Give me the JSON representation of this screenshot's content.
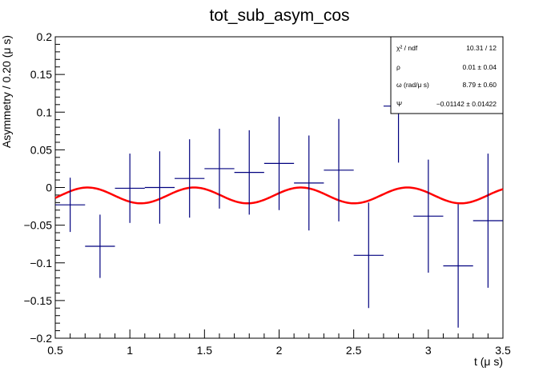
{
  "chart_data": {
    "type": "scatter",
    "title": "tot_sub_asym_cos",
    "xlabel": "t (μ s)",
    "ylabel": "Asymmetry / 0.20 (μ s)",
    "xlim": [
      0.5,
      3.5
    ],
    "ylim": [
      -0.2,
      0.2
    ],
    "x_ticks": [
      "0.5",
      "1",
      "1.5",
      "2",
      "2.5",
      "3",
      "3.5"
    ],
    "y_ticks": [
      "−0.2",
      "−0.15",
      "−0.1",
      "−0.05",
      "0",
      "0.05",
      "0.1",
      "0.15",
      "0.2"
    ],
    "grid": false,
    "series": [
      {
        "type": "errorbar",
        "color": "#00007f",
        "points": [
          {
            "x": 0.6,
            "y": -0.023,
            "yerr": 0.036
          },
          {
            "x": 0.8,
            "y": -0.078,
            "yerr": 0.042
          },
          {
            "x": 1.0,
            "y": -0.001,
            "yerr": 0.046
          },
          {
            "x": 1.2,
            "y": 0.0,
            "yerr": 0.048
          },
          {
            "x": 1.4,
            "y": 0.012,
            "yerr": 0.052
          },
          {
            "x": 1.6,
            "y": 0.025,
            "yerr": 0.053
          },
          {
            "x": 1.8,
            "y": 0.02,
            "yerr": 0.056
          },
          {
            "x": 2.0,
            "y": 0.032,
            "yerr": 0.062
          },
          {
            "x": 2.2,
            "y": 0.006,
            "yerr": 0.063
          },
          {
            "x": 2.4,
            "y": 0.023,
            "yerr": 0.068
          },
          {
            "x": 2.6,
            "y": -0.09,
            "yerr": 0.07
          },
          {
            "x": 2.8,
            "y": 0.108,
            "yerr": 0.075
          },
          {
            "x": 3.0,
            "y": -0.038,
            "yerr": 0.075
          },
          {
            "x": 3.2,
            "y": -0.104,
            "yerr": 0.082
          },
          {
            "x": 3.4,
            "y": -0.044,
            "yerr": 0.089
          }
        ]
      },
      {
        "type": "fit",
        "color": "#ff0000",
        "function": "p0 * cos(omega * t + psi)",
        "x_range": [
          0.5,
          3.5
        ]
      }
    ],
    "stats_box": {
      "position": "top-right",
      "rows": [
        {
          "label": "χ² / ndf",
          "value": "10.31 / 12"
        },
        {
          "label": "ρ",
          "value": "0.01 ± 0.04"
        },
        {
          "label": "ω (rad/μ s)",
          "value": "8.79 ± 0.60"
        },
        {
          "label": "Ψ",
          "value": "−0.01142 ± 0.01422"
        }
      ]
    },
    "fit_params": {
      "p0": 0.0105,
      "omega": 8.79,
      "psi": -0.01142,
      "offset": -0.0105
    }
  }
}
